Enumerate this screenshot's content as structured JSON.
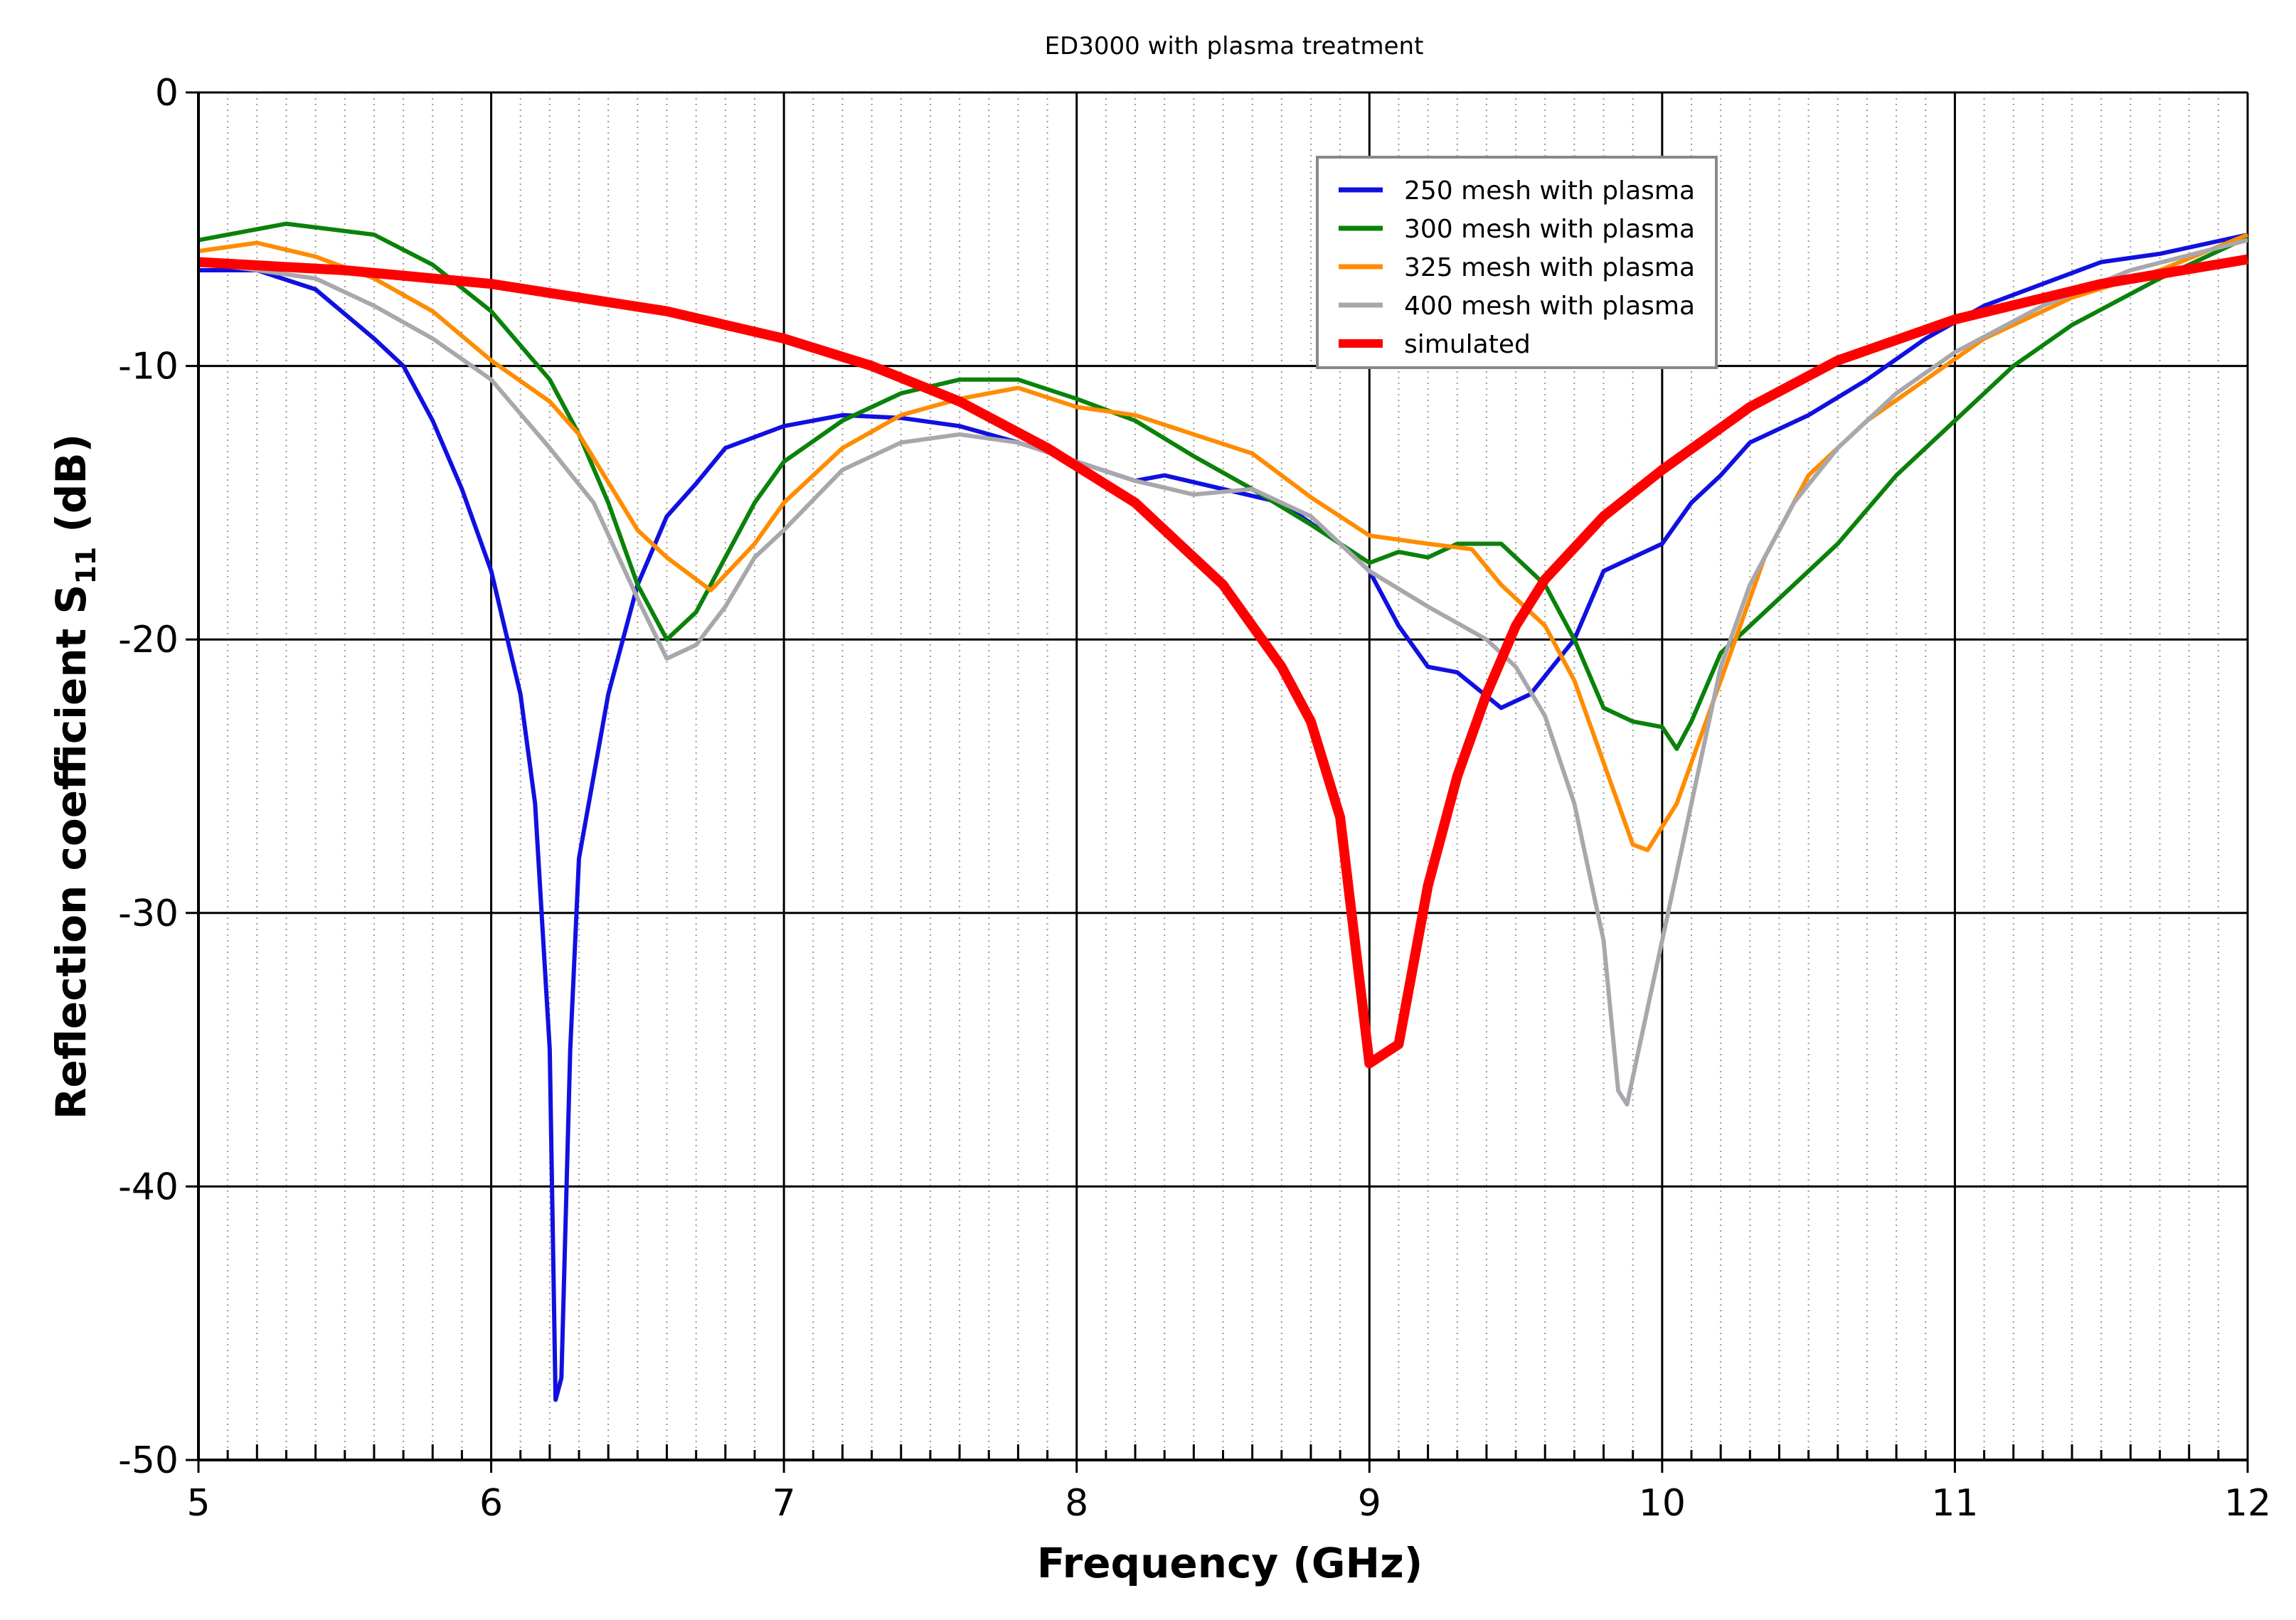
{
  "chart_data": {
    "type": "line",
    "title": "ED3000 with plasma treatment",
    "xlabel": "Frequency (GHz)",
    "ylabel": "Reflection coefficient S11 (dB)",
    "ylabel_main": "Reflection coefficient S",
    "ylabel_sub": "11",
    "ylabel_unit": " (dB)",
    "xlim": [
      5,
      12
    ],
    "ylim": [
      -50,
      0
    ],
    "xticks": [
      5,
      6,
      7,
      8,
      9,
      10,
      11,
      12
    ],
    "yticks": [
      0,
      -10,
      -20,
      -30,
      -40,
      -50
    ],
    "grid": true,
    "legend_position": "top-right",
    "series": [
      {
        "name": "250 mesh with plasma",
        "color": "#1010e0",
        "width": 6,
        "x": [
          5,
          5.2,
          5.4,
          5.6,
          5.7,
          5.8,
          5.9,
          6.0,
          6.1,
          6.15,
          6.2,
          6.22,
          6.24,
          6.27,
          6.3,
          6.35,
          6.4,
          6.5,
          6.6,
          6.7,
          6.8,
          7.0,
          7.2,
          7.4,
          7.6,
          7.8,
          8.0,
          8.2,
          8.3,
          8.5,
          8.7,
          8.9,
          9.0,
          9.1,
          9.2,
          9.3,
          9.45,
          9.55,
          9.7,
          9.8,
          9.9,
          10.0,
          10.1,
          10.2,
          10.3,
          10.5,
          10.7,
          10.9,
          11.1,
          11.3,
          11.5,
          11.7,
          12
        ],
        "y": [
          -6.5,
          -6.5,
          -7.2,
          -9,
          -10,
          -12,
          -14.5,
          -17.5,
          -22,
          -26,
          -35,
          -47.8,
          -47,
          -35,
          -28,
          -25,
          -22,
          -18,
          -15.5,
          -14.3,
          -13,
          -12.2,
          -11.8,
          -11.9,
          -12.2,
          -12.8,
          -13.5,
          -14.2,
          -14,
          -14.5,
          -15,
          -16.5,
          -17.5,
          -19.5,
          -21,
          -21.2,
          -22.5,
          -22,
          -20,
          -17.5,
          -17,
          -16.5,
          -15,
          -14,
          -12.8,
          -11.8,
          -10.5,
          -9,
          -7.8,
          -7,
          -6.2,
          -5.9,
          -5.2
        ]
      },
      {
        "name": "300 mesh with plasma",
        "color": "#0a820a",
        "width": 6,
        "x": [
          5,
          5.3,
          5.6,
          5.8,
          6.0,
          6.2,
          6.3,
          6.4,
          6.5,
          6.6,
          6.7,
          6.8,
          6.9,
          7.0,
          7.2,
          7.4,
          7.6,
          7.8,
          8.0,
          8.2,
          8.4,
          8.6,
          8.8,
          9.0,
          9.1,
          9.2,
          9.3,
          9.45,
          9.6,
          9.7,
          9.8,
          9.9,
          10.0,
          10.05,
          10.1,
          10.2,
          10.4,
          10.6,
          10.8,
          11.0,
          11.2,
          11.4,
          11.7,
          12
        ],
        "y": [
          -5.4,
          -4.8,
          -5.2,
          -6.3,
          -8,
          -10.5,
          -12.5,
          -15,
          -18,
          -20,
          -19,
          -17,
          -15,
          -13.5,
          -12,
          -11,
          -10.5,
          -10.5,
          -11.2,
          -12,
          -13.3,
          -14.5,
          -15.8,
          -17.2,
          -16.8,
          -17,
          -16.5,
          -16.5,
          -18,
          -20,
          -22.5,
          -23,
          -23.2,
          -24,
          -23,
          -20.5,
          -18.5,
          -16.5,
          -14,
          -12,
          -10,
          -8.5,
          -6.8,
          -5.3
        ]
      },
      {
        "name": "325 mesh with plasma",
        "color": "#ff8c00",
        "width": 6,
        "x": [
          5,
          5.2,
          5.4,
          5.6,
          5.8,
          6.0,
          6.2,
          6.3,
          6.5,
          6.6,
          6.75,
          6.9,
          7.0,
          7.2,
          7.4,
          7.6,
          7.8,
          8.0,
          8.2,
          8.4,
          8.6,
          8.8,
          9.0,
          9.2,
          9.35,
          9.45,
          9.6,
          9.7,
          9.8,
          9.9,
          9.95,
          10.05,
          10.15,
          10.25,
          10.35,
          10.5,
          10.7,
          10.9,
          11.1,
          11.4,
          11.7,
          12
        ],
        "y": [
          -5.8,
          -5.5,
          -6,
          -6.8,
          -8,
          -9.8,
          -11.3,
          -12.5,
          -16,
          -17,
          -18.2,
          -16.5,
          -15,
          -13,
          -11.8,
          -11.2,
          -10.8,
          -11.5,
          -11.8,
          -12.5,
          -13.2,
          -14.8,
          -16.2,
          -16.5,
          -16.7,
          -18,
          -19.5,
          -21.5,
          -24.5,
          -27.5,
          -27.7,
          -26,
          -23,
          -20,
          -17,
          -14,
          -12,
          -10.5,
          -9,
          -7.5,
          -6.5,
          -5.2
        ]
      },
      {
        "name": "400 mesh with plasma",
        "color": "#a8a8ac",
        "width": 6,
        "x": [
          5,
          5.2,
          5.4,
          5.6,
          5.8,
          6.0,
          6.2,
          6.35,
          6.5,
          6.6,
          6.7,
          6.8,
          6.9,
          7.0,
          7.2,
          7.4,
          7.6,
          7.8,
          8.0,
          8.2,
          8.4,
          8.6,
          8.8,
          9.0,
          9.2,
          9.4,
          9.5,
          9.6,
          9.7,
          9.8,
          9.85,
          9.88,
          9.92,
          10.0,
          10.1,
          10.2,
          10.3,
          10.45,
          10.6,
          10.8,
          11.0,
          11.3,
          11.6,
          12
        ],
        "y": [
          -6.2,
          -6.5,
          -6.8,
          -7.8,
          -9,
          -10.5,
          -13,
          -15,
          -18.5,
          -20.7,
          -20.2,
          -18.8,
          -17,
          -16,
          -13.8,
          -12.8,
          -12.5,
          -12.8,
          -13.5,
          -14.2,
          -14.7,
          -14.5,
          -15.5,
          -17.5,
          -18.8,
          -20,
          -21,
          -22.8,
          -26,
          -31,
          -36.5,
          -37,
          -35,
          -31,
          -26,
          -21,
          -18,
          -15,
          -13,
          -11,
          -9.5,
          -7.8,
          -6.5,
          -5.4
        ]
      },
      {
        "name": "simulated",
        "color": "#ff0000",
        "width": 14,
        "x": [
          5,
          5.5,
          6.0,
          6.3,
          6.6,
          6.8,
          7.0,
          7.3,
          7.6,
          7.9,
          8.2,
          8.5,
          8.7,
          8.8,
          8.9,
          9.0,
          9.1,
          9.2,
          9.3,
          9.4,
          9.5,
          9.6,
          9.8,
          10.0,
          10.3,
          10.6,
          11.0,
          11.5,
          12
        ],
        "y": [
          -6.2,
          -6.5,
          -7.0,
          -7.5,
          -8,
          -8.5,
          -9,
          -10,
          -11.3,
          -13,
          -15,
          -18,
          -21,
          -23,
          -26.5,
          -35.5,
          -34.8,
          -29,
          -25,
          -22,
          -19.5,
          -17.8,
          -15.5,
          -13.8,
          -11.5,
          -9.8,
          -8.3,
          -7,
          -6.1
        ]
      }
    ]
  }
}
